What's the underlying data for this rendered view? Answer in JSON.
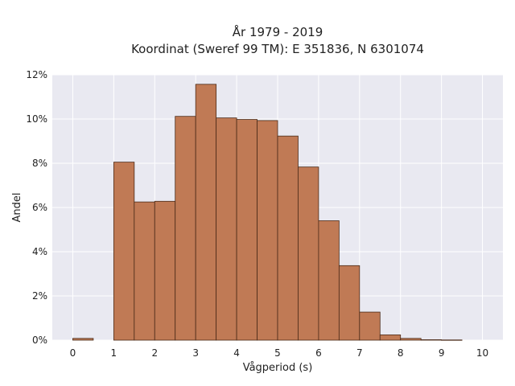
{
  "chart_data": {
    "type": "bar",
    "title_lines": [
      "År 1979 - 2019",
      "Koordinat (Sweref 99 TM): E 351836, N 6301074"
    ],
    "xlabel": "Vågperiod (s)",
    "ylabel": "Andel",
    "xlim": [
      -0.5,
      10.5
    ],
    "ylim": [
      0,
      12
    ],
    "xticks": [
      0,
      1,
      2,
      3,
      4,
      5,
      6,
      7,
      8,
      9,
      10
    ],
    "xtick_labels": [
      "0",
      "1",
      "2",
      "3",
      "4",
      "5",
      "6",
      "7",
      "8",
      "9",
      "10"
    ],
    "yticks": [
      0,
      2,
      4,
      6,
      8,
      10,
      12
    ],
    "ytick_labels": [
      "0%",
      "2%",
      "4%",
      "6%",
      "8%",
      "10%",
      "12%"
    ],
    "bin_width": 0.5,
    "bins": [
      {
        "x0": 0.0,
        "value": 0.08
      },
      {
        "x0": 0.5,
        "value": 0.0
      },
      {
        "x0": 1.0,
        "value": 8.05
      },
      {
        "x0": 1.5,
        "value": 6.25
      },
      {
        "x0": 2.0,
        "value": 6.28
      },
      {
        "x0": 2.5,
        "value": 10.12
      },
      {
        "x0": 3.0,
        "value": 11.57
      },
      {
        "x0": 3.5,
        "value": 10.05
      },
      {
        "x0": 4.0,
        "value": 9.98
      },
      {
        "x0": 4.5,
        "value": 9.93
      },
      {
        "x0": 5.0,
        "value": 9.23
      },
      {
        "x0": 5.5,
        "value": 7.83
      },
      {
        "x0": 6.0,
        "value": 5.4
      },
      {
        "x0": 6.5,
        "value": 3.37
      },
      {
        "x0": 7.0,
        "value": 1.27
      },
      {
        "x0": 7.5,
        "value": 0.24
      },
      {
        "x0": 8.0,
        "value": 0.08
      },
      {
        "x0": 8.5,
        "value": 0.02
      },
      {
        "x0": 9.0,
        "value": 0.01
      }
    ],
    "bar_color": "#c07a55",
    "bar_edge_color": "#4a2a18",
    "grid": true,
    "legend": "none"
  }
}
